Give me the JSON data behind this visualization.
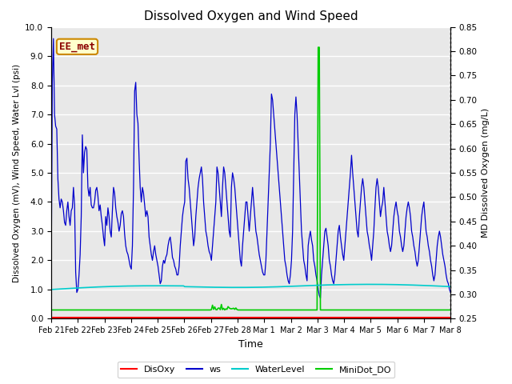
{
  "title": "Dissolved Oxygen and Wind Speed",
  "ylabel_left": "Dissolved Oxygen (mV), Wind Speed, Water Lvl (psi)",
  "ylabel_right": "MD Dissolved Oxygen (mg/L)",
  "xlabel": "Time",
  "annotation": "EE_met",
  "ylim_left": [
    0.0,
    10.0
  ],
  "ylim_right": [
    0.25,
    0.85
  ],
  "yticks_left": [
    0.0,
    1.0,
    2.0,
    3.0,
    4.0,
    5.0,
    6.0,
    7.0,
    8.0,
    9.0,
    10.0
  ],
  "yticks_right": [
    0.25,
    0.3,
    0.35,
    0.4,
    0.45,
    0.5,
    0.55,
    0.6,
    0.65,
    0.7,
    0.75,
    0.8,
    0.85
  ],
  "xtick_labels": [
    "Feb 21",
    "Feb 22",
    "Feb 23",
    "Feb 24",
    "Feb 25",
    "Feb 26",
    "Feb 27",
    "Feb 28",
    "Mar 1",
    "Mar 2",
    "Mar 3",
    "Mar 4",
    "Mar 5",
    "Mar 6",
    "Mar 7",
    "Mar 8"
  ],
  "background_color": "#e8e8e8",
  "grid_color": "#ffffff",
  "colors": {
    "DisOxy": "#ff0000",
    "ws": "#0000cc",
    "WaterLevel": "#00cccc",
    "MiniDot_DO": "#00cc00"
  },
  "legend_labels": [
    "DisOxy",
    "ws",
    "WaterLevel",
    "MiniDot_DO"
  ],
  "subplot_adjust": [
    0.1,
    0.17,
    0.88,
    0.93
  ]
}
